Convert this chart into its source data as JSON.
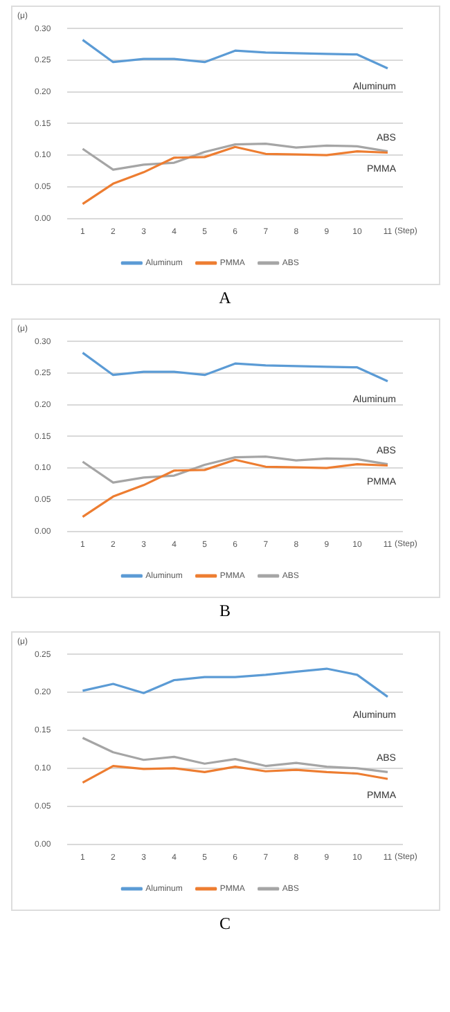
{
  "chart_data": [
    {
      "type": "line",
      "title": "A",
      "xlabel": "(Step)",
      "ylabel": "(μ)",
      "categories": [
        "1",
        "2",
        "3",
        "4",
        "5",
        "6",
        "7",
        "8",
        "9",
        "10",
        "11"
      ],
      "series": [
        {
          "name": "Aluminum",
          "color": "#5b9bd5",
          "values": [
            0.282,
            0.247,
            0.252,
            0.252,
            0.247,
            0.265,
            0.262,
            0.261,
            0.26,
            0.259,
            0.237
          ]
        },
        {
          "name": "PMMA",
          "color": "#ed7d31",
          "values": [
            0.023,
            0.055,
            0.073,
            0.096,
            0.097,
            0.113,
            0.102,
            0.101,
            0.1,
            0.106,
            0.104
          ]
        },
        {
          "name": "ABS",
          "color": "#a5a5a5",
          "values": [
            0.11,
            0.077,
            0.085,
            0.088,
            0.105,
            0.117,
            0.118,
            0.112,
            0.115,
            0.114,
            0.106
          ]
        }
      ],
      "ylim": [
        0,
        0.3
      ],
      "yticks": [
        {
          "value": 0,
          "label": "0.00"
        },
        {
          "value": 0.05,
          "label": "0.05"
        },
        {
          "value": 0.1,
          "label": "0.10"
        },
        {
          "value": 0.15,
          "label": "0.15"
        },
        {
          "value": 0.2,
          "label": "0.20"
        },
        {
          "value": 0.25,
          "label": "0.25"
        },
        {
          "value": 0.3,
          "label": "0.30"
        }
      ],
      "grid": "y",
      "legend": "bottom",
      "marker": "none"
    },
    {
      "type": "line",
      "title": "B",
      "xlabel": "(Step)",
      "ylabel": "(μ)",
      "categories": [
        "1",
        "2",
        "3",
        "4",
        "5",
        "6",
        "7",
        "8",
        "9",
        "10",
        "11"
      ],
      "series": [
        {
          "name": "Aluminum",
          "color": "#5b9bd5",
          "values": [
            0.282,
            0.247,
            0.252,
            0.252,
            0.247,
            0.265,
            0.262,
            0.261,
            0.26,
            0.259,
            0.237
          ]
        },
        {
          "name": "PMMA",
          "color": "#ed7d31",
          "values": [
            0.023,
            0.055,
            0.073,
            0.096,
            0.097,
            0.113,
            0.102,
            0.101,
            0.1,
            0.106,
            0.104
          ]
        },
        {
          "name": "ABS",
          "color": "#a5a5a5",
          "values": [
            0.11,
            0.077,
            0.085,
            0.088,
            0.105,
            0.117,
            0.118,
            0.112,
            0.115,
            0.114,
            0.106
          ]
        }
      ],
      "ylim": [
        0,
        0.3
      ],
      "yticks": [
        {
          "value": 0,
          "label": "0.00"
        },
        {
          "value": 0.05,
          "label": "0.05"
        },
        {
          "value": 0.1,
          "label": "0.10"
        },
        {
          "value": 0.15,
          "label": "0.15"
        },
        {
          "value": 0.2,
          "label": "0.20"
        },
        {
          "value": 0.25,
          "label": "0.25"
        },
        {
          "value": 0.3,
          "label": "0.30"
        }
      ],
      "grid": "y",
      "legend": "bottom",
      "marker": "none"
    },
    {
      "type": "line",
      "title": "C",
      "xlabel": "(Step)",
      "ylabel": "(μ)",
      "categories": [
        "1",
        "2",
        "3",
        "4",
        "5",
        "6",
        "7",
        "8",
        "9",
        "10",
        "11"
      ],
      "series": [
        {
          "name": "Aluminum",
          "color": "#5b9bd5",
          "values": [
            0.202,
            0.211,
            0.199,
            0.216,
            0.22,
            0.22,
            0.223,
            0.227,
            0.231,
            0.223,
            0.194
          ]
        },
        {
          "name": "PMMA",
          "color": "#ed7d31",
          "values": [
            0.081,
            0.103,
            0.099,
            0.1,
            0.095,
            0.102,
            0.096,
            0.098,
            0.095,
            0.093,
            0.086
          ]
        },
        {
          "name": "ABS",
          "color": "#a5a5a5",
          "values": [
            0.14,
            0.121,
            0.111,
            0.115,
            0.106,
            0.112,
            0.103,
            0.107,
            0.102,
            0.1,
            0.095
          ]
        }
      ],
      "ylim": [
        0,
        0.25
      ],
      "yticks": [
        {
          "value": 0,
          "label": "0.00"
        },
        {
          "value": 0.05,
          "label": "0.05"
        },
        {
          "value": 0.1,
          "label": "0.10"
        },
        {
          "value": 0.15,
          "label": "0.15"
        },
        {
          "value": 0.2,
          "label": "0.20"
        },
        {
          "value": 0.25,
          "label": "0.25"
        }
      ],
      "grid": "y",
      "legend": "bottom",
      "marker": "none"
    }
  ]
}
